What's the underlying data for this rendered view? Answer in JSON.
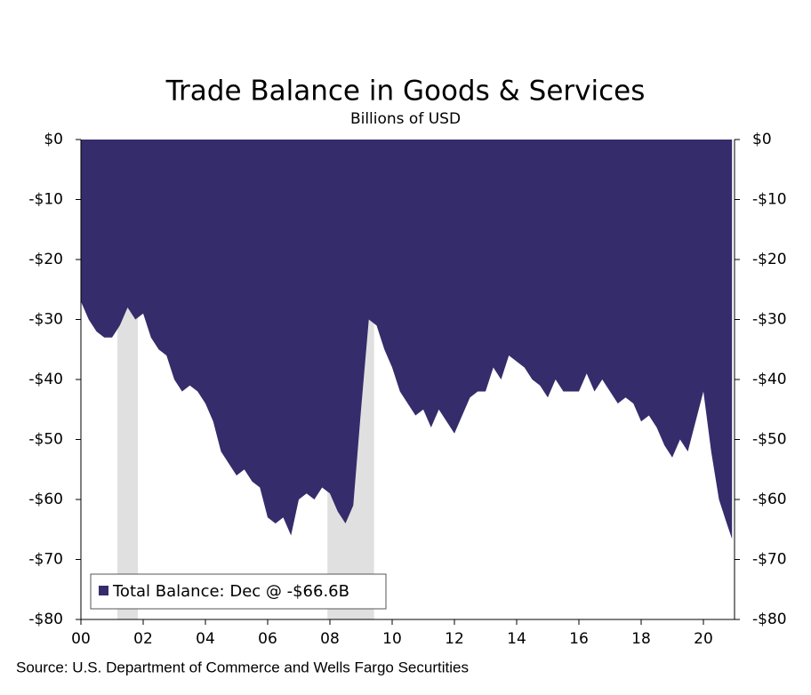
{
  "chart_data": {
    "type": "area",
    "title": "Trade Balance in Goods & Services",
    "subtitle": "Billions of USD",
    "source": "Source: U.S. Department of Commerce and Wells Fargo Securtities",
    "legend_label": "Total Balance: Dec @ -$66.6B",
    "color": "#352c6b",
    "recession_color": "#e0e0e0",
    "recessions": [
      [
        2001.17,
        2001.83
      ],
      [
        2007.92,
        2009.42
      ]
    ],
    "x": [
      2000,
      2000.25,
      2000.5,
      2000.75,
      2001,
      2001.25,
      2001.5,
      2001.75,
      2002,
      2002.25,
      2002.5,
      2002.75,
      2003,
      2003.25,
      2003.5,
      2003.75,
      2004,
      2004.25,
      2004.5,
      2004.75,
      2005,
      2005.25,
      2005.5,
      2005.75,
      2006,
      2006.25,
      2006.5,
      2006.75,
      2007,
      2007.25,
      2007.5,
      2007.75,
      2008,
      2008.25,
      2008.5,
      2008.75,
      2009,
      2009.25,
      2009.5,
      2009.75,
      2010,
      2010.25,
      2010.5,
      2010.75,
      2011,
      2011.25,
      2011.5,
      2011.75,
      2012,
      2012.25,
      2012.5,
      2012.75,
      2013,
      2013.25,
      2013.5,
      2013.75,
      2014,
      2014.25,
      2014.5,
      2014.75,
      2015,
      2015.25,
      2015.5,
      2015.75,
      2016,
      2016.25,
      2016.5,
      2016.75,
      2017,
      2017.25,
      2017.5,
      2017.75,
      2018,
      2018.25,
      2018.5,
      2018.75,
      2019,
      2019.25,
      2019.5,
      2019.75,
      2020,
      2020.25,
      2020.5,
      2020.75,
      2020.92
    ],
    "values": [
      -27,
      -30,
      -32,
      -33,
      -33,
      -31,
      -28,
      -30,
      -29,
      -33,
      -35,
      -36,
      -40,
      -42,
      -41,
      -42,
      -44,
      -47,
      -52,
      -54,
      -56,
      -55,
      -57,
      -58,
      -63,
      -64,
      -63,
      -66,
      -60,
      -59,
      -60,
      -58,
      -59,
      -62,
      -64,
      -61,
      -45,
      -30,
      -31,
      -35,
      -38,
      -42,
      -44,
      -46,
      -45,
      -48,
      -45,
      -47,
      -49,
      -46,
      -43,
      -42,
      -42,
      -38,
      -40,
      -36,
      -37,
      -38,
      -40,
      -41,
      -43,
      -40,
      -42,
      -42,
      -42,
      -39,
      -42,
      -40,
      -42,
      -44,
      -43,
      -44,
      -47,
      -46,
      -48,
      -51,
      -53,
      -50,
      -52,
      -47,
      -42,
      -52,
      -60,
      -64,
      -66.6
    ],
    "xlim": [
      2000,
      2021
    ],
    "xticks": [
      {
        "value": 2000,
        "label": "00"
      },
      {
        "value": 2002,
        "label": "02"
      },
      {
        "value": 2004,
        "label": "04"
      },
      {
        "value": 2006,
        "label": "06"
      },
      {
        "value": 2008,
        "label": "08"
      },
      {
        "value": 2010,
        "label": "10"
      },
      {
        "value": 2012,
        "label": "12"
      },
      {
        "value": 2014,
        "label": "14"
      },
      {
        "value": 2016,
        "label": "16"
      },
      {
        "value": 2018,
        "label": "18"
      },
      {
        "value": 2020,
        "label": "20"
      }
    ],
    "ylim": [
      -80,
      0
    ],
    "yticks": [
      {
        "value": 0,
        "label": "$0"
      },
      {
        "value": -10,
        "label": "-$10"
      },
      {
        "value": -20,
        "label": "-$20"
      },
      {
        "value": -30,
        "label": "-$30"
      },
      {
        "value": -40,
        "label": "-$40"
      },
      {
        "value": -50,
        "label": "-$50"
      },
      {
        "value": -60,
        "label": "-$60"
      },
      {
        "value": -70,
        "label": "-$70"
      },
      {
        "value": -80,
        "label": "-$80"
      }
    ]
  }
}
